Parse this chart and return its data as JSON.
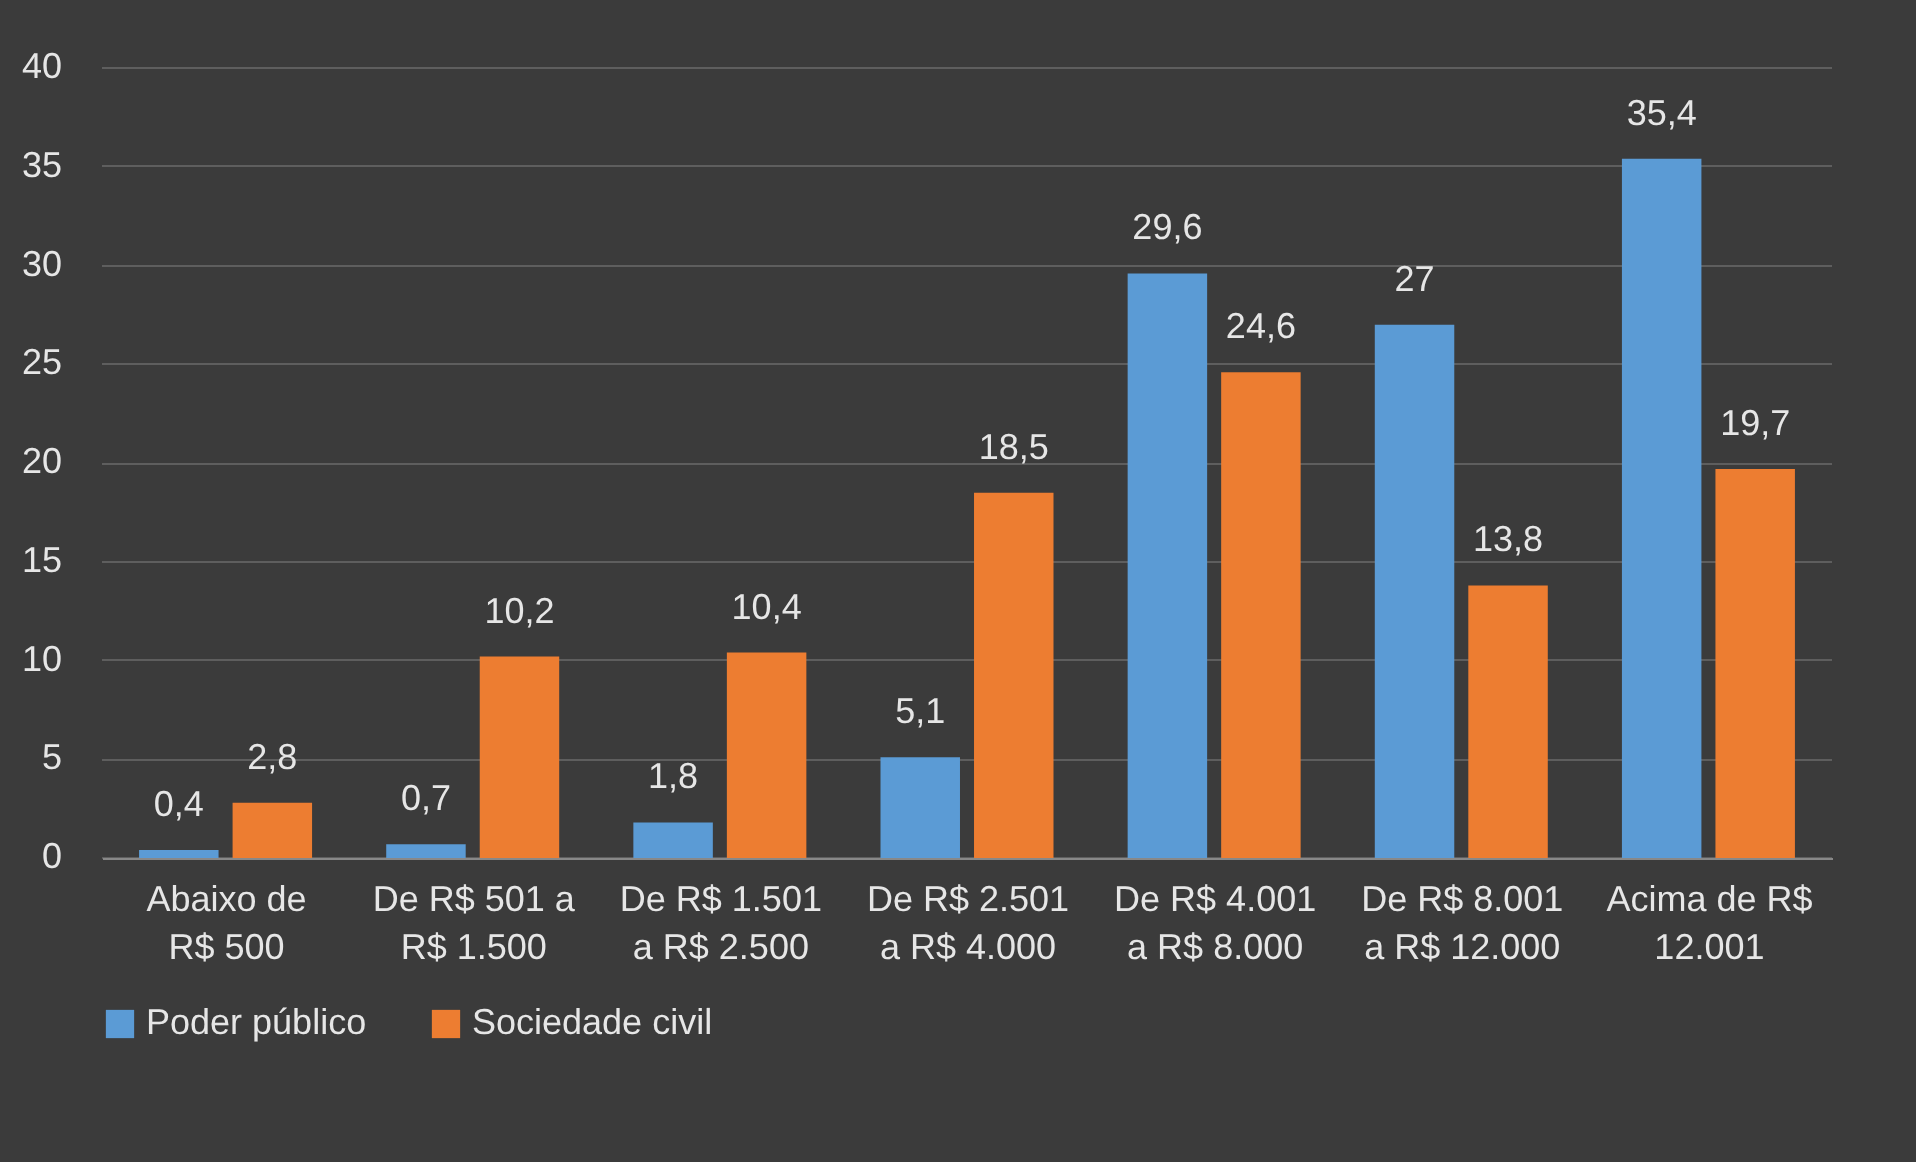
{
  "chart_data": {
    "type": "bar",
    "categories": [
      "Abaixo de R$ 500",
      "De R$ 501 a R$ 1.500",
      "De R$ 1.501 a R$ 2.500",
      "De R$ 2.501 a R$ 4.000",
      "De R$ 4.001 a R$ 8.000",
      "De R$ 8.001 a R$ 12.000",
      "Acima de R$ 12.001"
    ],
    "series": [
      {
        "name": "Poder público",
        "color": "#5b9bd5",
        "values": [
          0.4,
          0.7,
          1.8,
          5.1,
          29.6,
          27,
          35.4
        ],
        "value_labels": [
          "0,4",
          "0,7",
          "1,8",
          "5,1",
          "29,6",
          "27",
          "35,4"
        ]
      },
      {
        "name": "Sociedade civil",
        "color": "#ed7d31",
        "values": [
          2.8,
          10.2,
          10.4,
          18.5,
          24.6,
          13.8,
          19.7
        ],
        "value_labels": [
          "2,8",
          "10,2",
          "10,4",
          "18,5",
          "24,6",
          "13,8",
          "19,7"
        ]
      }
    ],
    "ylim": [
      0,
      40
    ],
    "yticks": [
      0,
      5,
      10,
      15,
      20,
      25,
      30,
      35,
      40
    ],
    "grid": "y",
    "legend": "bottom"
  }
}
